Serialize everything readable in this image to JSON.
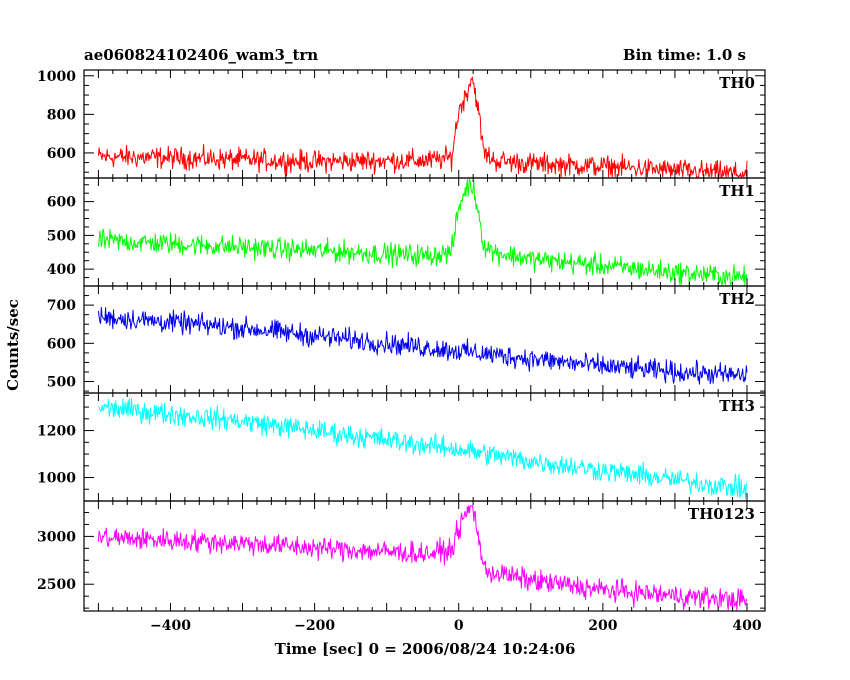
{
  "chart_data": {
    "type": "line",
    "title_left": "ae060824102406_wam3_trn",
    "title_right": "Bin time: 1.0 s",
    "xlabel": "Time [sec] 0 = 2006/08/24 10:24:06",
    "ylabel": "Counts/sec",
    "xlim": [
      -520,
      425
    ],
    "x_ticks": [
      -400,
      -200,
      0,
      200,
      400
    ],
    "x_tick_labels": [
      "−400",
      "−200",
      "0",
      "200",
      "400"
    ],
    "grid": false,
    "panels": [
      {
        "name": "TH0",
        "color": "#ff0000",
        "ylim": [
          470,
          1030
        ],
        "y_ticks": [
          600,
          800,
          1000
        ],
        "y_tick_labels": [
          "600",
          "800",
          "1000"
        ],
        "series": [
          {
            "x": [
              -500,
              -400,
              -300,
              -200,
              -100,
              -40,
              -10,
              0,
              10,
              18,
              25,
              35,
              50,
              100,
              200,
              300,
              400
            ],
            "values": [
              580,
              575,
              565,
              555,
              560,
              560,
              575,
              820,
              900,
              1000,
              880,
              600,
              560,
              545,
              530,
              510,
              490
            ]
          }
        ]
      },
      {
        "name": "TH1",
        "color": "#00ff00",
        "ylim": [
          350,
          670
        ],
        "y_ticks": [
          400,
          500,
          600
        ],
        "y_tick_labels": [
          "400",
          "500",
          "600"
        ],
        "series": [
          {
            "x": [
              -500,
              -400,
              -300,
              -200,
              -100,
              -40,
              -10,
              0,
              10,
              18,
              25,
              35,
              50,
              100,
              200,
              300,
              400
            ],
            "values": [
              485,
              475,
              465,
              455,
              445,
              440,
              450,
              580,
              640,
              650,
              600,
              470,
              450,
              430,
              410,
              390,
              375
            ]
          }
        ]
      },
      {
        "name": "TH2",
        "color": "#0000ee",
        "ylim": [
          470,
          750
        ],
        "y_ticks": [
          500,
          600,
          700
        ],
        "y_tick_labels": [
          "500",
          "600",
          "700"
        ],
        "series": [
          {
            "x": [
              -500,
              -400,
              -300,
              -200,
              -100,
              0,
              100,
              200,
              300,
              400
            ],
            "values": [
              670,
              655,
              640,
              620,
              600,
              580,
              560,
              540,
              525,
              515
            ]
          }
        ]
      },
      {
        "name": "TH3",
        "color": "#00ffff",
        "ylim": [
          900,
          1360
        ],
        "y_ticks": [
          1000,
          1200
        ],
        "y_tick_labels": [
          "1000",
          "1200"
        ],
        "series": [
          {
            "x": [
              -500,
              -400,
              -300,
              -200,
              -100,
              0,
              100,
              200,
              300,
              400
            ],
            "values": [
              1300,
              1270,
              1240,
              1200,
              1160,
              1120,
              1070,
              1030,
              990,
              950
            ]
          }
        ]
      },
      {
        "name": "TH0123",
        "color": "#ff00ff",
        "ylim": [
          2220,
          3370
        ],
        "y_ticks": [
          2500,
          3000
        ],
        "y_tick_labels": [
          "2500",
          "3000"
        ],
        "series": [
          {
            "x": [
              -500,
              -400,
              -300,
              -200,
              -100,
              -40,
              -10,
              0,
              10,
              18,
              25,
              35,
              50,
              100,
              200,
              300,
              400
            ],
            "values": [
              2990,
              2960,
              2930,
              2880,
              2840,
              2820,
              2860,
              3080,
              3230,
              3320,
              3120,
              2650,
              2620,
              2540,
              2440,
              2380,
              2330
            ]
          }
        ]
      }
    ]
  }
}
